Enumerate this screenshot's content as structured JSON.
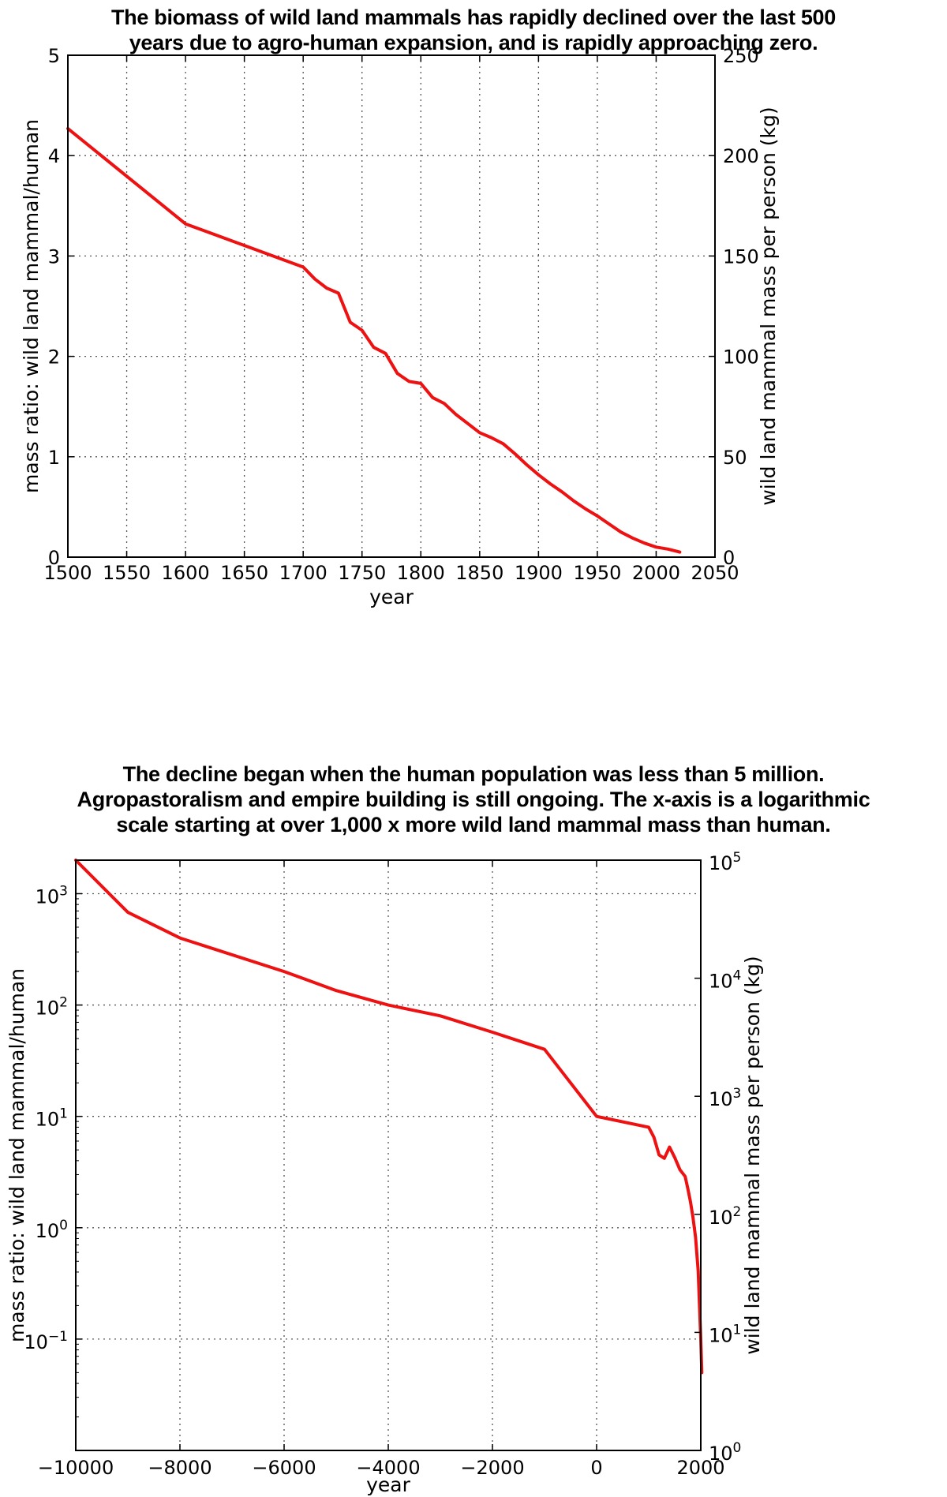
{
  "chart_data": [
    {
      "type": "line",
      "title_lines": [
        "The biomass of wild land mammals has rapidly declined over the last 500",
        "years due to agro-human expansion, and is rapidly approaching zero."
      ],
      "xlabel": "year",
      "ylabel": "mass ratio: wild land mammal/human",
      "y2label": "wild land mammal mass per person (kg)",
      "xlim": [
        1500,
        2050
      ],
      "ylim": [
        0,
        5
      ],
      "y2lim": [
        0,
        250
      ],
      "y2_per_y": 50,
      "x_ticks": [
        1500,
        1550,
        1600,
        1650,
        1700,
        1750,
        1800,
        1850,
        1900,
        1950,
        2000,
        2050
      ],
      "y_ticks": [
        0,
        1,
        2,
        3,
        4,
        5
      ],
      "y2_ticks": [
        0,
        50,
        100,
        150,
        200,
        250
      ],
      "grid": true,
      "series_color": "#ee1111",
      "x": [
        1500,
        1600,
        1700,
        1710,
        1720,
        1730,
        1740,
        1750,
        1760,
        1770,
        1780,
        1790,
        1800,
        1810,
        1820,
        1830,
        1840,
        1850,
        1860,
        1870,
        1880,
        1890,
        1900,
        1910,
        1920,
        1930,
        1940,
        1950,
        1960,
        1970,
        1980,
        1990,
        2000,
        2010,
        2020
      ],
      "y": [
        4.27,
        3.32,
        2.89,
        2.77,
        2.68,
        2.63,
        2.34,
        2.26,
        2.09,
        2.03,
        1.83,
        1.75,
        1.73,
        1.59,
        1.53,
        1.42,
        1.33,
        1.24,
        1.19,
        1.13,
        1.03,
        0.92,
        0.82,
        0.73,
        0.65,
        0.56,
        0.48,
        0.41,
        0.33,
        0.25,
        0.19,
        0.14,
        0.1,
        0.08,
        0.05
      ]
    },
    {
      "type": "line",
      "title_lines": [
        "The decline began when the human population was less than 5 million.",
        "Agropastoralism and empire building is still ongoing. The x-axis is a logarithmic",
        "scale starting at over 1,000 x more wild land mammal mass than human."
      ],
      "xlabel": "year",
      "ylabel": "mass ratio: wild land mammal/human",
      "y2label": "wild land mammal mass per person (kg)",
      "xlim": [
        -10000,
        2000
      ],
      "ylim": [
        0.01,
        2000
      ],
      "y2lim": [
        1,
        100000
      ],
      "y_scale": "log",
      "x_ticks": [
        -10000,
        -8000,
        -6000,
        -4000,
        -2000,
        0,
        2000
      ],
      "x_tick_labels": [
        "−10000",
        "−8000",
        "−6000",
        "−4000",
        "−2000",
        "0",
        "2000"
      ],
      "y_tick_exponents": [
        -1,
        0,
        1,
        2,
        3
      ],
      "y2_tick_exponents": [
        0,
        1,
        2,
        3,
        4,
        5
      ],
      "tick_base": "10",
      "grid": true,
      "series_color": "#ee1111",
      "x": [
        -10000,
        -9000,
        -8000,
        -6000,
        -5000,
        -4000,
        -3000,
        -2000,
        -1000,
        0,
        1000,
        1100,
        1200,
        1300,
        1400,
        1500,
        1600,
        1700,
        1750,
        1800,
        1850,
        1900,
        1950,
        2000,
        2020
      ],
      "y": [
        2000,
        680,
        400,
        200,
        135,
        100,
        80,
        57,
        40,
        10,
        8,
        6.5,
        4.5,
        4.2,
        5.3,
        4.27,
        3.32,
        2.89,
        2.26,
        1.73,
        1.24,
        0.82,
        0.41,
        0.1,
        0.05
      ]
    }
  ]
}
